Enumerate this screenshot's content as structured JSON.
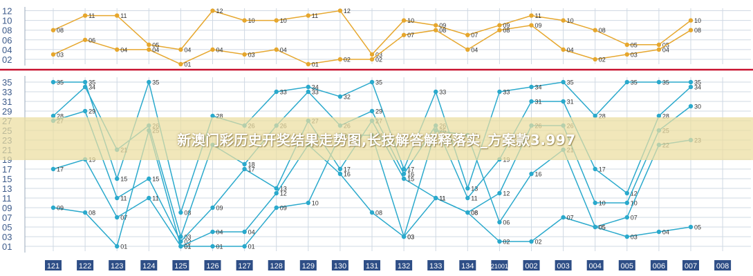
{
  "banner": {
    "title": "新澳门彩历史开奖结果走势图,长技解答解释落实_方案款3.997"
  },
  "colors": {
    "top": "#e6a72e",
    "bottom": "#2aa9cc",
    "divider": "#c8102e",
    "grid": "#cfd8e3",
    "tab": "#2e4e86"
  },
  "chart_data": [
    {
      "type": "line",
      "panel": "top",
      "categories": [
        "121",
        "122",
        "123",
        "124",
        "125",
        "126",
        "127",
        "128",
        "129",
        "130",
        "131",
        "132",
        "133",
        "134",
        "21001",
        "002",
        "003",
        "004",
        "005",
        "006",
        "007",
        "008"
      ],
      "y_ticks": [
        "02",
        "04",
        "06",
        "08",
        "10",
        "12"
      ],
      "ylim": [
        1,
        12.5
      ],
      "series": [
        {
          "values": [
            8,
            11,
            11,
            5,
            4,
            12,
            10,
            10,
            11,
            12,
            3,
            10,
            9,
            7,
            9,
            11,
            10,
            8,
            5,
            5,
            10,
            null
          ],
          "labels": [
            "08",
            "11",
            "11",
            "05",
            "04",
            "12",
            "10",
            "10",
            "11",
            "12",
            "03",
            "10",
            "09",
            "07",
            "09",
            "11",
            "10",
            "08",
            "05",
            "05",
            "10",
            ""
          ]
        },
        {
          "values": [
            3,
            6,
            4,
            4,
            1,
            4,
            3,
            4,
            1,
            2,
            2,
            7,
            8,
            4,
            8,
            9,
            4,
            2,
            3,
            4,
            8,
            null
          ],
          "labels": [
            "03",
            "06",
            "04",
            "04",
            "01",
            "04",
            "03",
            "04",
            "01",
            "02",
            "02",
            "07",
            "08",
            "04",
            "08",
            "09",
            "04",
            "02",
            "03",
            "04",
            "08",
            ""
          ]
        }
      ]
    },
    {
      "type": "line",
      "panel": "bottom",
      "categories": [
        "121",
        "122",
        "123",
        "124",
        "125",
        "126",
        "127",
        "128",
        "129",
        "130",
        "131",
        "132",
        "133",
        "134",
        "21001",
        "002",
        "003",
        "004",
        "005",
        "006",
        "007",
        "008"
      ],
      "y_ticks": [
        "01",
        "03",
        "05",
        "07",
        "09",
        "11",
        "13",
        "15",
        "17",
        "19",
        "21",
        "23",
        "25",
        "27",
        "29",
        "31",
        "33",
        "35"
      ],
      "ylim": [
        0,
        36
      ],
      "series": [
        {
          "values": [
            35,
            35,
            15,
            35,
            8,
            28,
            26,
            33,
            34,
            32,
            35,
            17,
            33,
            13,
            33,
            34,
            35,
            28,
            35,
            35,
            35,
            null
          ],
          "labels": [
            "35",
            "35",
            "15",
            "35",
            "08",
            "28",
            "26",
            "33",
            "34",
            "32",
            "35",
            "17",
            "33",
            "13",
            "33",
            "34",
            "35",
            "28",
            "35",
            "35",
            "35",
            ""
          ]
        },
        {
          "values": [
            28,
            34,
            21,
            26,
            3,
            22,
            18,
            26,
            33,
            26,
            29,
            16,
            26,
            11,
            19,
            31,
            31,
            17,
            12,
            28,
            34,
            null
          ],
          "labels": [
            "28",
            "34",
            "21",
            "26",
            "03",
            "22",
            "18",
            "26",
            "33",
            "26",
            "29",
            "16",
            "26",
            "11",
            "19",
            "31",
            "31",
            "17",
            "12",
            "28",
            "34",
            ""
          ]
        },
        {
          "values": [
            27,
            29,
            11,
            15,
            2,
            9,
            17,
            13,
            27,
            17,
            27,
            15,
            11,
            8,
            12,
            26,
            26,
            10,
            10,
            25,
            30,
            null
          ],
          "labels": [
            "27",
            "29",
            "11",
            "15",
            "02",
            "09",
            "17",
            "13",
            "27",
            "17",
            "27",
            "15",
            "11",
            "08",
            "12",
            "26",
            "26",
            "10",
            "10",
            "25",
            "30",
            ""
          ]
        },
        {
          "values": [
            17,
            19,
            7,
            11,
            1,
            4,
            4,
            12,
            22,
            16,
            8,
            3,
            25,
            24,
            6,
            16,
            21,
            5,
            7,
            22,
            23,
            null
          ],
          "labels": [
            "17",
            "19",
            "07",
            "11",
            "01",
            "04",
            "04",
            "12",
            "22",
            "16",
            "08",
            "03",
            "25",
            "24",
            "06",
            "16",
            "21",
            "05",
            "07",
            "22",
            "23",
            ""
          ]
        },
        {
          "values": [
            9,
            8,
            1,
            25,
            1,
            1,
            1,
            9,
            10,
            24,
            24,
            3,
            11,
            8,
            2,
            2,
            7,
            5,
            3,
            4,
            5,
            null
          ],
          "labels": [
            "09",
            "08",
            "01",
            "25",
            "01",
            "01",
            "01",
            "09",
            "10",
            "24",
            "24",
            "03",
            "11",
            "08",
            "02",
            "02",
            "07",
            "05",
            "03",
            "04",
            "05",
            ""
          ]
        }
      ]
    }
  ]
}
